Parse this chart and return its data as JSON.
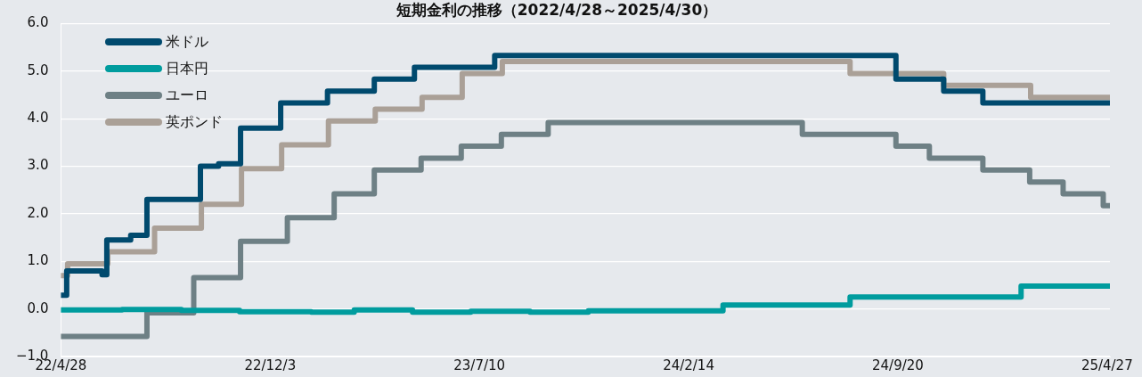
{
  "chart_data": {
    "type": "step",
    "title": "短期金利の推移（2022/4/28～2025/4/30）",
    "xlim": [
      "2022-04-28",
      "2025-04-30"
    ],
    "xticks": [
      {
        "value": "2022-04-28",
        "label": "22/4/28"
      },
      {
        "value": "2022-12-03",
        "label": "22/12/3"
      },
      {
        "value": "2023-07-10",
        "label": "23/7/10"
      },
      {
        "value": "2024-02-14",
        "label": "24/2/14"
      },
      {
        "value": "2024-09-20",
        "label": "24/9/20"
      },
      {
        "value": "2025-04-27",
        "label": "25/4/27"
      }
    ],
    "ylim": [
      -1,
      6
    ],
    "yticks": [
      {
        "value": -1,
        "label": "−1.0"
      },
      {
        "value": 0,
        "label": "0.0"
      },
      {
        "value": 1,
        "label": "1.0"
      },
      {
        "value": 2,
        "label": "2.0"
      },
      {
        "value": 3,
        "label": "3.0"
      },
      {
        "value": 4,
        "label": "4.0"
      },
      {
        "value": 5,
        "label": "5.0"
      },
      {
        "value": 6,
        "label": "6.0"
      }
    ],
    "grid": "y",
    "legend": "top left",
    "line_style": "solid",
    "marker": "none",
    "series": [
      {
        "name": "米ドル",
        "color": "#004a6e",
        "x": [
          "2022-04-28",
          "2022-05-04",
          "2022-06-10",
          "2022-06-15",
          "2022-07-10",
          "2022-07-27",
          "2022-09-21",
          "2022-10-10",
          "2022-11-02",
          "2022-12-14",
          "2023-02-01",
          "2023-03-22",
          "2023-05-03",
          "2023-07-26",
          "2024-09-18",
          "2024-11-07",
          "2024-12-18",
          "2025-04-30"
        ],
        "values": [
          0.29,
          0.8,
          0.72,
          1.45,
          1.55,
          2.3,
          3.0,
          3.05,
          3.8,
          4.33,
          4.58,
          4.83,
          5.08,
          5.33,
          4.83,
          4.58,
          4.33,
          4.33
        ]
      },
      {
        "name": "日本円",
        "color": "#009c9e",
        "x": [
          "2022-04-28",
          "2022-07-01",
          "2022-09-01",
          "2022-11-01",
          "2023-01-15",
          "2023-03-01",
          "2023-05-01",
          "2023-07-01",
          "2023-09-01",
          "2023-11-01",
          "2024-03-21",
          "2024-08-01",
          "2025-01-27",
          "2025-04-30"
        ],
        "values": [
          -0.02,
          -0.01,
          -0.03,
          -0.06,
          -0.07,
          -0.02,
          -0.07,
          -0.05,
          -0.07,
          -0.04,
          0.08,
          0.25,
          0.48,
          0.48
        ]
      },
      {
        "name": "ユーロ",
        "color": "#6e8085",
        "x": [
          "2022-04-28",
          "2022-07-27",
          "2022-09-14",
          "2022-11-02",
          "2022-12-21",
          "2023-02-08",
          "2023-03-22",
          "2023-05-10",
          "2023-06-21",
          "2023-08-02",
          "2023-09-20",
          "2024-06-12",
          "2024-09-18",
          "2024-10-23",
          "2024-12-18",
          "2025-02-05",
          "2025-03-12",
          "2025-04-23",
          "2025-04-30"
        ],
        "values": [
          -0.58,
          -0.08,
          0.66,
          1.42,
          1.92,
          2.42,
          2.92,
          3.17,
          3.42,
          3.67,
          3.92,
          3.67,
          3.42,
          3.17,
          2.92,
          2.67,
          2.42,
          2.17,
          2.17
        ]
      },
      {
        "name": "英ポンド",
        "color": "#aaa097",
        "x": [
          "2022-04-28",
          "2022-05-05",
          "2022-06-16",
          "2022-08-04",
          "2022-09-22",
          "2022-11-03",
          "2022-12-15",
          "2023-02-02",
          "2023-03-23",
          "2023-05-11",
          "2023-06-22",
          "2023-08-03",
          "2024-08-01",
          "2024-11-07",
          "2025-02-06",
          "2025-04-30"
        ],
        "values": [
          0.7,
          0.95,
          1.2,
          1.7,
          2.2,
          2.95,
          3.45,
          3.95,
          4.2,
          4.45,
          4.95,
          5.2,
          4.95,
          4.7,
          4.45,
          4.45
        ]
      }
    ]
  }
}
